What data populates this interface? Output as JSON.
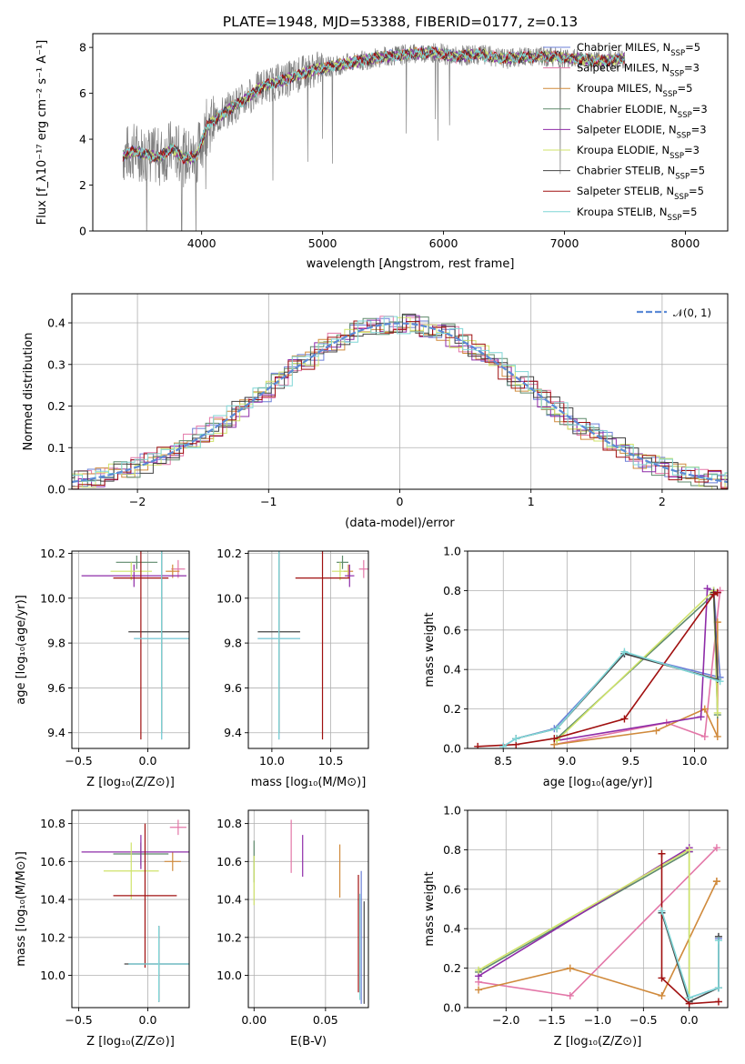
{
  "figure": {
    "title": "PLATE=1948, MJD=53388, FIBERID=0177, z=0.13"
  },
  "colors": {
    "Chabrier MILES": "#6b7fd7",
    "Salpeter MILES": "#e377a8",
    "Kroupa MILES": "#d08a3c",
    "Chabrier ELODIE": "#5e8a6b",
    "Salpeter ELODIE": "#8e2ca8",
    "Kroupa ELODIE": "#cfe36a",
    "Chabrier STELIB": "#444444",
    "Salpeter STELIB": "#a01010",
    "Kroupa STELIB": "#7fd6d6",
    "data": "#808080",
    "normal": "#5b8ad6"
  },
  "chart_data": [
    {
      "id": "spectrum",
      "type": "line",
      "title": "PLATE=1948, MJD=53388, FIBERID=0177, z=0.13",
      "xlabel": "wavelength [Angstrom, rest frame]",
      "ylabel": "Flux [f_λ10⁻¹⁷ erg cm⁻² s⁻¹ A⁻¹]",
      "xlim": [
        3100,
        8350
      ],
      "ylim": [
        0,
        8.6
      ],
      "xticks": [
        4000,
        5000,
        6000,
        7000,
        8000
      ],
      "yticks": [
        0,
        2,
        4,
        6,
        8
      ],
      "legend_position": "top-right",
      "legend": [
        {
          "label": "Chabrier MILES, N",
          "sub": "SSP",
          "tail": "=5"
        },
        {
          "label": "Salpeter MILES, N",
          "sub": "SSP",
          "tail": "=3"
        },
        {
          "label": "Kroupa MILES, N",
          "sub": "SSP",
          "tail": "=5"
        },
        {
          "label": "Chabrier ELODIE, N",
          "sub": "SSP",
          "tail": "=3"
        },
        {
          "label": "Salpeter ELODIE, N",
          "sub": "SSP",
          "tail": "=3"
        },
        {
          "label": "Kroupa ELODIE, N",
          "sub": "SSP",
          "tail": "=3"
        },
        {
          "label": "Chabrier STELIB, N",
          "sub": "SSP",
          "tail": "=5"
        },
        {
          "label": "Salpeter STELIB, N",
          "sub": "SSP",
          "tail": "=5"
        },
        {
          "label": "Kroupa STELIB, N",
          "sub": "SSP",
          "tail": "=5"
        }
      ],
      "model_continuum": {
        "wavelength": [
          3350,
          3450,
          3550,
          3650,
          3750,
          3850,
          3950,
          4050,
          4150,
          4250,
          4350,
          4500,
          4700,
          4900,
          5100,
          5300,
          5500,
          5700,
          5900,
          6100,
          6300,
          6500,
          6700,
          6900,
          7100,
          7300,
          7500
        ],
        "flux": [
          3.3,
          3.5,
          3.3,
          3.2,
          3.6,
          3.2,
          3.2,
          4.6,
          5.0,
          5.4,
          5.7,
          6.3,
          6.6,
          7.0,
          7.2,
          7.4,
          7.6,
          7.7,
          7.8,
          7.6,
          7.7,
          7.5,
          7.6,
          7.6,
          7.5,
          7.4,
          7.5
        ]
      }
    },
    {
      "id": "residuals",
      "type": "line",
      "xlabel": "(data-model)/error",
      "ylabel": "Normed distribution",
      "xlim": [
        -2.5,
        2.5
      ],
      "ylim": [
        0,
        0.47
      ],
      "xticks": [
        -2,
        -1,
        0,
        1,
        2
      ],
      "xticklabels": [
        "−2",
        "−1",
        "0",
        "1",
        "2"
      ],
      "yticks": [
        0.0,
        0.1,
        0.2,
        0.3,
        0.4
      ],
      "yticklabels": [
        "0.0",
        "0.1",
        "0.2",
        "0.3",
        "0.4"
      ],
      "legend_position": "top-right",
      "normal_label": "𝒩(0, 1)",
      "bin_width": 0.1
    },
    {
      "id": "age_vs_Z",
      "type": "scatter",
      "xlabel": "Z [log₁₀(Z/Z⊙)]",
      "ylabel": "age  [log₁₀(age/yr)]",
      "xlim": [
        -0.55,
        0.3
      ],
      "ylim": [
        9.33,
        10.21
      ],
      "xticks": [
        -0.5,
        0.0
      ],
      "xticklabels": [
        "−0.5",
        "0.0"
      ],
      "yticks": [
        9.4,
        9.6,
        9.8,
        10.0,
        10.2
      ],
      "yticklabels": [
        "9.4",
        "9.6",
        "9.8",
        "10.0",
        "10.2"
      ],
      "points": [
        {
          "model": "Chabrier MILES",
          "x": 0.1,
          "xerr": 0.2,
          "y": 9.82,
          "yerr": 0.45
        },
        {
          "model": "Salpeter MILES",
          "x": 0.22,
          "xerr": 0.05,
          "y": 10.13,
          "yerr": 0.04
        },
        {
          "model": "Kroupa MILES",
          "x": 0.18,
          "xerr": 0.05,
          "y": 10.12,
          "yerr": 0.03
        },
        {
          "model": "Chabrier ELODIE",
          "x": -0.08,
          "xerr": 0.15,
          "y": 10.16,
          "yerr": 0.03
        },
        {
          "model": "Salpeter ELODIE",
          "x": -0.1,
          "xerr": 0.38,
          "y": 10.1,
          "yerr": 0.05
        },
        {
          "model": "Kroupa ELODIE",
          "x": -0.12,
          "xerr": 0.15,
          "y": 10.12,
          "yerr": 0.04
        },
        {
          "model": "Chabrier STELIB",
          "x": 0.1,
          "xerr": 0.24,
          "y": 9.85,
          "yerr": 0.45
        },
        {
          "model": "Salpeter STELIB",
          "x": -0.05,
          "xerr": 0.2,
          "y": 10.09,
          "yerr": 0.72
        },
        {
          "model": "Kroupa STELIB",
          "x": 0.1,
          "xerr": 0.2,
          "y": 9.82,
          "yerr": 0.45
        }
      ]
    },
    {
      "id": "age_vs_mass",
      "type": "scatter",
      "xlabel": "mass [log₁₀(M/M⊙)]",
      "ylabel": "",
      "xlim": [
        9.8,
        10.82
      ],
      "ylim": [
        9.33,
        10.21
      ],
      "xticks": [
        10.0,
        10.5
      ],
      "xticklabels": [
        "10.0",
        "10.5"
      ],
      "yticks": [
        9.4,
        9.6,
        9.8,
        10.0,
        10.2
      ],
      "yticklabels": [
        "9.4",
        "9.6",
        "9.8",
        "10.0",
        "10.2"
      ],
      "points": [
        {
          "model": "Chabrier MILES",
          "x": 10.06,
          "xerr": 0.18,
          "y": 9.82,
          "yerr": 0.45
        },
        {
          "model": "Salpeter MILES",
          "x": 10.78,
          "xerr": 0.04,
          "y": 10.13,
          "yerr": 0.04
        },
        {
          "model": "Kroupa MILES",
          "x": 10.65,
          "xerr": 0.04,
          "y": 10.12,
          "yerr": 0.03
        },
        {
          "model": "Chabrier ELODIE",
          "x": 10.6,
          "xerr": 0.05,
          "y": 10.16,
          "yerr": 0.03
        },
        {
          "model": "Salpeter ELODIE",
          "x": 10.66,
          "xerr": 0.04,
          "y": 10.1,
          "yerr": 0.05
        },
        {
          "model": "Kroupa ELODIE",
          "x": 10.58,
          "xerr": 0.07,
          "y": 10.12,
          "yerr": 0.04
        },
        {
          "model": "Chabrier STELIB",
          "x": 10.06,
          "xerr": 0.18,
          "y": 9.85,
          "yerr": 0.45
        },
        {
          "model": "Salpeter STELIB",
          "x": 10.43,
          "xerr": 0.23,
          "y": 10.09,
          "yerr": 0.72
        },
        {
          "model": "Kroupa STELIB",
          "x": 10.06,
          "xerr": 0.18,
          "y": 9.82,
          "yerr": 0.45
        }
      ]
    },
    {
      "id": "mass_weight_vs_age",
      "type": "line",
      "xlabel": "age  [log₁₀(age/yr)]",
      "ylabel": "mass weight",
      "xlim": [
        8.22,
        10.26
      ],
      "ylim": [
        0,
        1.0
      ],
      "xticks": [
        8.5,
        9.0,
        9.5,
        10.0
      ],
      "xticklabels": [
        "8.5",
        "9.0",
        "9.5",
        "10.0"
      ],
      "yticks": [
        0.0,
        0.2,
        0.4,
        0.6,
        0.8,
        1.0
      ],
      "yticklabels": [
        "0.0",
        "0.2",
        "0.4",
        "0.6",
        "0.8",
        "1.0"
      ],
      "series": [
        {
          "model": "Chabrier MILES",
          "x": [
            8.5,
            8.6,
            8.9,
            9.45,
            10.2,
            10.15
          ],
          "y": [
            0.01,
            0.05,
            0.1,
            0.48,
            0.36,
            0.8
          ]
        },
        {
          "model": "Salpeter MILES",
          "x": [
            8.9,
            9.78,
            10.08,
            10.2
          ],
          "y": [
            0.02,
            0.13,
            0.06,
            0.8
          ]
        },
        {
          "model": "Kroupa MILES",
          "x": [
            8.9,
            9.7,
            10.08,
            10.18,
            10.18
          ],
          "y": [
            0.02,
            0.09,
            0.2,
            0.06,
            0.64
          ]
        },
        {
          "model": "Chabrier ELODIE",
          "x": [
            8.92,
            10.15,
            10.18
          ],
          "y": [
            0.05,
            0.78,
            0.17
          ]
        },
        {
          "model": "Salpeter ELODIE",
          "x": [
            8.92,
            10.05,
            10.1,
            10.18
          ],
          "y": [
            0.04,
            0.16,
            0.81,
            0.79
          ]
        },
        {
          "model": "Kroupa ELODIE",
          "x": [
            8.92,
            10.15,
            10.18
          ],
          "y": [
            0.04,
            0.8,
            0.18
          ]
        },
        {
          "model": "Chabrier STELIB",
          "x": [
            8.6,
            8.92,
            9.45,
            10.18,
            10.15
          ],
          "y": [
            0.05,
            0.1,
            0.48,
            0.35,
            0.79
          ]
        },
        {
          "model": "Salpeter STELIB",
          "x": [
            8.3,
            8.6,
            8.9,
            9.45,
            10.15,
            10.18
          ],
          "y": [
            0.01,
            0.02,
            0.05,
            0.15,
            0.78,
            0.79
          ]
        },
        {
          "model": "Kroupa STELIB",
          "x": [
            8.5,
            8.6,
            8.92,
            9.45,
            10.2
          ],
          "y": [
            0.01,
            0.05,
            0.1,
            0.49,
            0.34
          ]
        }
      ]
    },
    {
      "id": "mass_vs_Z",
      "type": "scatter",
      "xlabel": "Z [log₁₀(Z/Z⊙)]",
      "ylabel": "mass [log₁₀(M/M⊙)]",
      "xlim": [
        -0.55,
        0.3
      ],
      "ylim": [
        9.83,
        10.87
      ],
      "xticks": [
        -0.5,
        0.0
      ],
      "xticklabels": [
        "−0.5",
        "0.0"
      ],
      "yticks": [
        10.0,
        10.2,
        10.4,
        10.6,
        10.8
      ],
      "yticklabels": [
        "10.0",
        "10.2",
        "10.4",
        "10.6",
        "10.8"
      ],
      "points": [
        {
          "model": "Chabrier MILES",
          "x": 0.08,
          "xerr": 0.22,
          "y": 10.06,
          "yerr": 0.2
        },
        {
          "model": "Salpeter MILES",
          "x": 0.22,
          "xerr": 0.06,
          "y": 10.78,
          "yerr": 0.04
        },
        {
          "model": "Kroupa MILES",
          "x": 0.18,
          "xerr": 0.06,
          "y": 10.6,
          "yerr": 0.05
        },
        {
          "model": "Chabrier ELODIE",
          "x": -0.05,
          "xerr": 0.2,
          "y": 10.64,
          "yerr": 0.06
        },
        {
          "model": "Salpeter ELODIE",
          "x": -0.05,
          "xerr": 0.43,
          "y": 10.65,
          "yerr": 0.09
        },
        {
          "model": "Kroupa ELODIE",
          "x": -0.12,
          "xerr": 0.2,
          "y": 10.55,
          "yerr": 0.15
        },
        {
          "model": "Chabrier STELIB",
          "x": 0.08,
          "xerr": 0.25,
          "y": 10.06,
          "yerr": 0.2
        },
        {
          "model": "Salpeter STELIB",
          "x": -0.02,
          "xerr": 0.23,
          "y": 10.42,
          "yerr": 0.38
        },
        {
          "model": "Kroupa STELIB",
          "x": 0.08,
          "xerr": 0.22,
          "y": 10.06,
          "yerr": 0.2
        }
      ]
    },
    {
      "id": "mass_vs_EBV",
      "type": "scatter",
      "xlabel": "E(B-V)",
      "ylabel": "",
      "xlim": [
        -0.004,
        0.08
      ],
      "ylim": [
        9.83,
        10.87
      ],
      "xticks": [
        0.0,
        0.05
      ],
      "xticklabels": [
        "0.00",
        "0.05"
      ],
      "yticks": [
        10.0,
        10.2,
        10.4,
        10.6,
        10.8
      ],
      "yticklabels": [
        "10.0",
        "10.2",
        "10.4",
        "10.6",
        "10.8"
      ],
      "points": [
        {
          "model": "Chabrier MILES",
          "x": 0.075,
          "xerr": 0,
          "y": 10.2,
          "yerr": 0.35
        },
        {
          "model": "Salpeter MILES",
          "x": 0.026,
          "xerr": 0,
          "y": 10.68,
          "yerr": 0.14
        },
        {
          "model": "Kroupa MILES",
          "x": 0.06,
          "xerr": 0,
          "y": 10.55,
          "yerr": 0.14
        },
        {
          "model": "Chabrier ELODIE",
          "x": 0.0,
          "xerr": 0,
          "y": 10.6,
          "yerr": 0.11
        },
        {
          "model": "Salpeter ELODIE",
          "x": 0.034,
          "xerr": 0,
          "y": 10.63,
          "yerr": 0.11
        },
        {
          "model": "Kroupa ELODIE",
          "x": 0.0,
          "xerr": 0,
          "y": 10.5,
          "yerr": 0.13
        },
        {
          "model": "Chabrier STELIB",
          "x": 0.077,
          "xerr": 0,
          "y": 10.12,
          "yerr": 0.27
        },
        {
          "model": "Salpeter STELIB",
          "x": 0.073,
          "xerr": 0,
          "y": 10.22,
          "yerr": 0.31
        },
        {
          "model": "Kroupa STELIB",
          "x": 0.074,
          "xerr": 0,
          "y": 10.15,
          "yerr": 0.28
        }
      ]
    },
    {
      "id": "mass_weight_vs_Z",
      "type": "line",
      "xlabel": "Z [log₁₀(Z/Z⊙)]",
      "ylabel": "mass weight",
      "xlim": [
        -2.42,
        0.42
      ],
      "ylim": [
        0,
        1.0
      ],
      "xticks": [
        -2.0,
        -1.5,
        -1.0,
        -0.5,
        0.0
      ],
      "xticklabels": [
        "−2.0",
        "−1.5",
        "−1.0",
        "−0.5",
        "0.0"
      ],
      "yticks": [
        0.0,
        0.2,
        0.4,
        0.6,
        0.8,
        1.0
      ],
      "yticklabels": [
        "0.0",
        "0.2",
        "0.4",
        "0.6",
        "0.8",
        "1.0"
      ],
      "series": [
        {
          "model": "Chabrier MILES",
          "x": [
            -0.3,
            0.0,
            0.32,
            0.32
          ],
          "y": [
            0.48,
            0.05,
            0.1,
            0.35
          ]
        },
        {
          "model": "Salpeter MILES",
          "x": [
            -2.3,
            -1.3,
            0.3
          ],
          "y": [
            0.13,
            0.06,
            0.81
          ]
        },
        {
          "model": "Kroupa MILES",
          "x": [
            -2.3,
            -1.3,
            -0.3,
            0.3,
            0.3
          ],
          "y": [
            0.09,
            0.2,
            0.06,
            0.64,
            0.64
          ]
        },
        {
          "model": "Chabrier ELODIE",
          "x": [
            -2.3,
            0.0,
            0.0
          ],
          "y": [
            0.18,
            0.79,
            0.05
          ]
        },
        {
          "model": "Salpeter ELODIE",
          "x": [
            -2.3,
            0.0,
            0.0
          ],
          "y": [
            0.16,
            0.81,
            0.79
          ]
        },
        {
          "model": "Kroupa ELODIE",
          "x": [
            -2.3,
            0.0,
            0.0
          ],
          "y": [
            0.19,
            0.8,
            0.05
          ]
        },
        {
          "model": "Chabrier STELIB",
          "x": [
            -0.3,
            0.0,
            0.32,
            0.32
          ],
          "y": [
            0.48,
            0.03,
            0.1,
            0.36
          ]
        },
        {
          "model": "Salpeter STELIB",
          "x": [
            -0.3,
            -0.3,
            0.0,
            0.32
          ],
          "y": [
            0.78,
            0.15,
            0.02,
            0.03
          ]
        },
        {
          "model": "Kroupa STELIB",
          "x": [
            -0.3,
            0.0,
            0.32,
            0.32
          ],
          "y": [
            0.49,
            0.05,
            0.1,
            0.34
          ]
        }
      ]
    }
  ]
}
